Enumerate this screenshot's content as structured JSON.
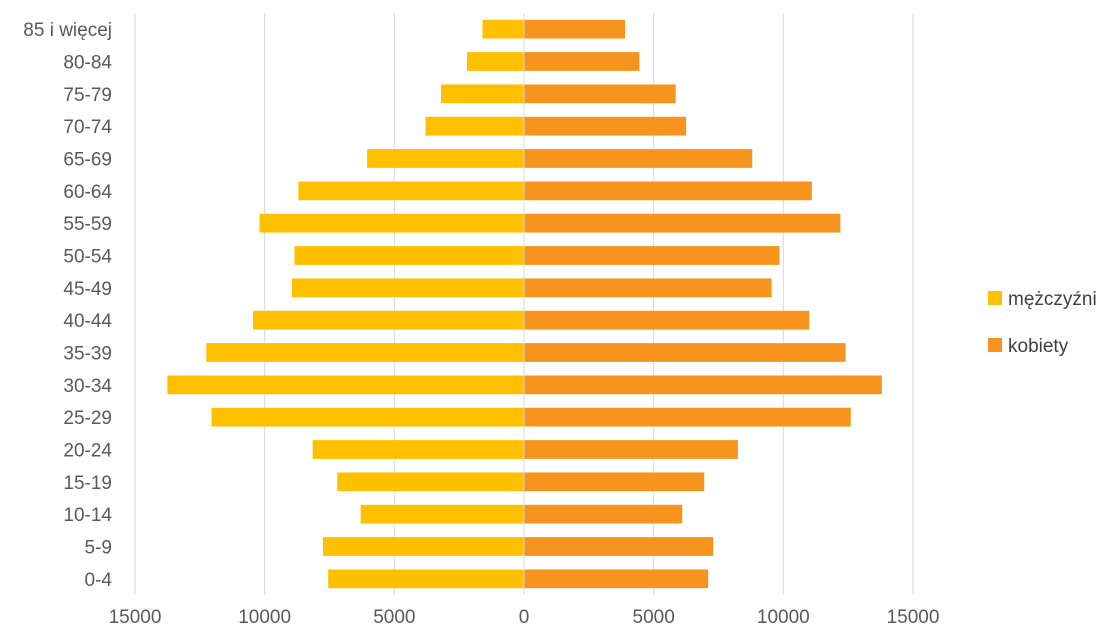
{
  "chart_data": {
    "type": "bar",
    "orientation": "horizontal",
    "layout": "population-pyramid",
    "categories": [
      "0-4",
      "5-9",
      "10-14",
      "15-19",
      "20-24",
      "25-29",
      "30-34",
      "35-39",
      "40-44",
      "45-49",
      "50-54",
      "55-59",
      "60-64",
      "65-69",
      "70-74",
      "75-79",
      "80-84",
      "85 i więcej"
    ],
    "series": [
      {
        "name": "mężczyźni",
        "color": "#FFC000",
        "side": "left",
        "values": [
          7550,
          7750,
          6300,
          7200,
          8150,
          12050,
          13750,
          12250,
          10450,
          8950,
          8850,
          10200,
          8700,
          6050,
          3800,
          3200,
          2200,
          1600
        ]
      },
      {
        "name": "kobiety",
        "color": "#F7941D",
        "side": "right",
        "values": [
          7100,
          7300,
          6100,
          6950,
          8250,
          12600,
          13800,
          12400,
          11000,
          9550,
          9850,
          12200,
          11100,
          8800,
          6250,
          5850,
          4450,
          3900
        ]
      }
    ],
    "xticks": [
      "15000",
      "10000",
      "5000",
      "0",
      "5000",
      "10000",
      "15000"
    ],
    "xlim": [
      -15000,
      15000
    ],
    "grid": "vertical",
    "legend": "right",
    "title": "",
    "xlabel": "",
    "ylabel": ""
  }
}
